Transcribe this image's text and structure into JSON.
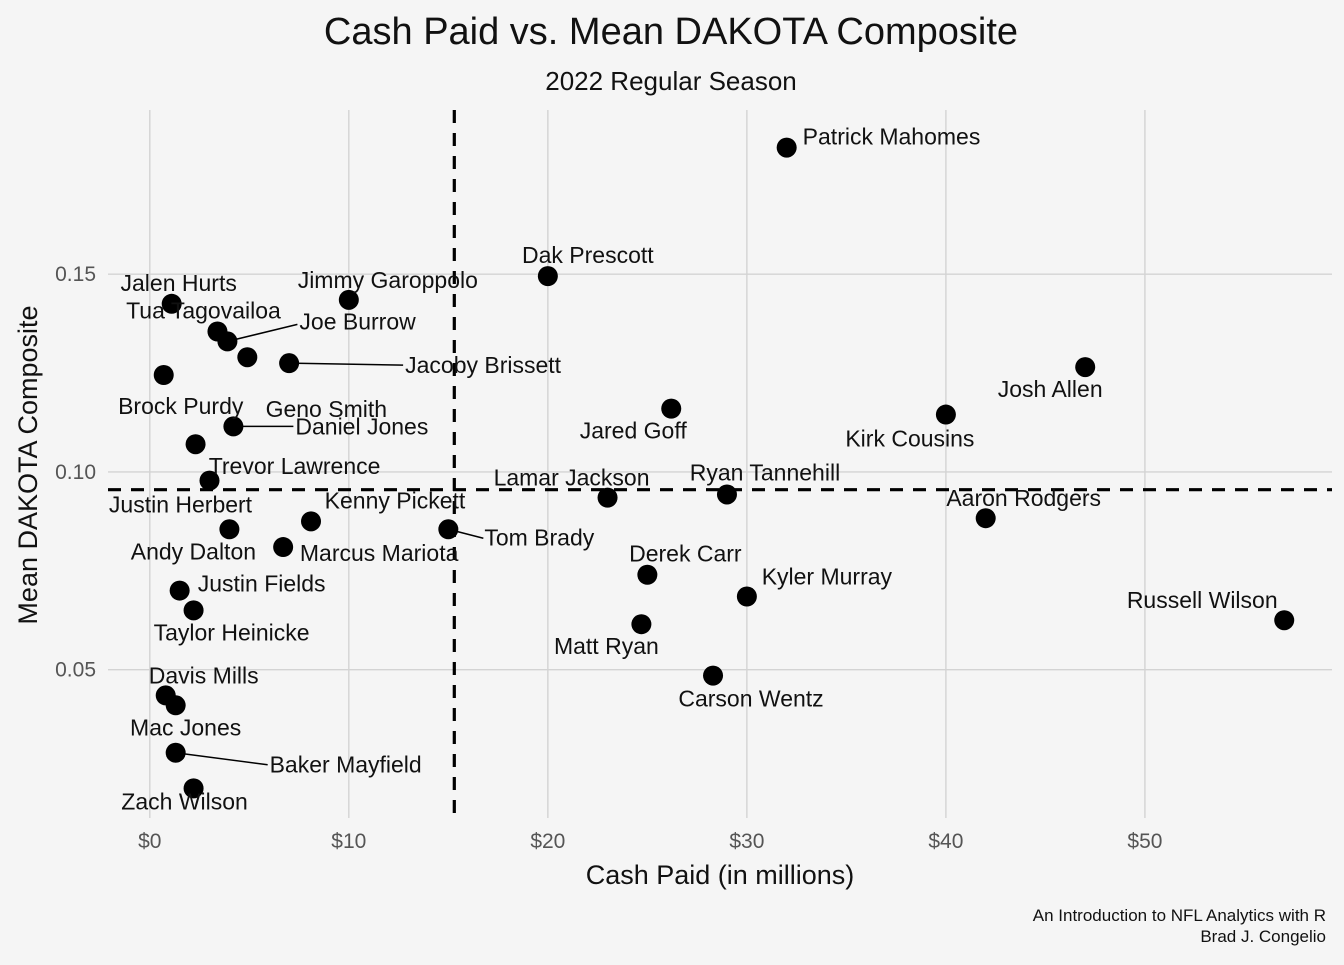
{
  "chart_data": {
    "type": "scatter",
    "title": "Cash Paid vs. Mean DAKOTA Composite",
    "subtitle": "2022 Regular Season",
    "xlabel": "Cash Paid (in millions)",
    "ylabel": "Mean DAKOTA Composite",
    "xlim": [
      -2.1,
      59.4
    ],
    "ylim": [
      0.0125,
      0.1915
    ],
    "x_ticks": [
      0,
      10,
      20,
      30,
      40,
      50
    ],
    "x_tick_labels": [
      "$0",
      "$10",
      "$20",
      "$30",
      "$40",
      "$50"
    ],
    "y_ticks": [
      0.05,
      0.1,
      0.15
    ],
    "y_tick_labels": [
      "0.05",
      "0.10",
      "0.15"
    ],
    "grid": true,
    "reference_lines": {
      "x_mean": 15.3,
      "y_mean": 0.0955,
      "style": "dashed"
    },
    "points": [
      {
        "name": "Patrick Mahomes",
        "x": 32.0,
        "y": 0.182
      },
      {
        "name": "Dak Prescott",
        "x": 20.0,
        "y": 0.1495
      },
      {
        "name": "Jimmy Garoppolo",
        "x": 10.0,
        "y": 0.1435
      },
      {
        "name": "Jalen Hurts",
        "x": 1.1,
        "y": 0.1425
      },
      {
        "name": "Tua Tagovailoa",
        "x": 3.4,
        "y": 0.1355
      },
      {
        "name": "Joe Burrow",
        "x": 3.9,
        "y": 0.133
      },
      {
        "name": "Jacoby Brissett",
        "x": 7.0,
        "y": 0.1275
      },
      {
        "name": "Geno Smith",
        "x": 4.9,
        "y": 0.129
      },
      {
        "name": "Brock Purdy",
        "x": 0.7,
        "y": 0.1245
      },
      {
        "name": "Josh Allen",
        "x": 47.0,
        "y": 0.1265
      },
      {
        "name": "Jared Goff",
        "x": 26.2,
        "y": 0.116
      },
      {
        "name": "Kirk Cousins",
        "x": 40.0,
        "y": 0.1145
      },
      {
        "name": "Daniel Jones",
        "x": 4.2,
        "y": 0.1115
      },
      {
        "name": "Trevor Lawrence",
        "x": 2.3,
        "y": 0.107
      },
      {
        "name": "Justin Herbert",
        "x": 3.0,
        "y": 0.0978
      },
      {
        "name": "Lamar Jackson",
        "x": 23.0,
        "y": 0.0935
      },
      {
        "name": "Ryan Tannehill",
        "x": 29.0,
        "y": 0.0943
      },
      {
        "name": "Aaron Rodgers",
        "x": 42.0,
        "y": 0.0883
      },
      {
        "name": "Kenny Pickett",
        "x": 8.1,
        "y": 0.0875
      },
      {
        "name": "Andy Dalton",
        "x": 4.0,
        "y": 0.0855
      },
      {
        "name": "Tom Brady",
        "x": 15.0,
        "y": 0.0855
      },
      {
        "name": "Marcus Mariota",
        "x": 6.7,
        "y": 0.081
      },
      {
        "name": "Derek Carr",
        "x": 25.0,
        "y": 0.074
      },
      {
        "name": "Justin Fields",
        "x": 1.5,
        "y": 0.07
      },
      {
        "name": "Kyler Murray",
        "x": 30.0,
        "y": 0.0685
      },
      {
        "name": "Taylor Heinicke",
        "x": 2.2,
        "y": 0.065
      },
      {
        "name": "Russell Wilson",
        "x": 57.0,
        "y": 0.0625
      },
      {
        "name": "Matt Ryan",
        "x": 24.7,
        "y": 0.0615
      },
      {
        "name": "Carson Wentz",
        "x": 28.3,
        "y": 0.0485
      },
      {
        "name": "Davis Mills",
        "x": 0.8,
        "y": 0.0435
      },
      {
        "name": "Mac Jones",
        "x": 1.3,
        "y": 0.041
      },
      {
        "name": "Baker Mayfield",
        "x": 1.3,
        "y": 0.029
      },
      {
        "name": "Zach Wilson",
        "x": 2.2,
        "y": 0.02
      }
    ]
  },
  "caption": {
    "line1": "An Introduction to NFL Analytics with R",
    "line2": "Brad J. Congelio"
  }
}
